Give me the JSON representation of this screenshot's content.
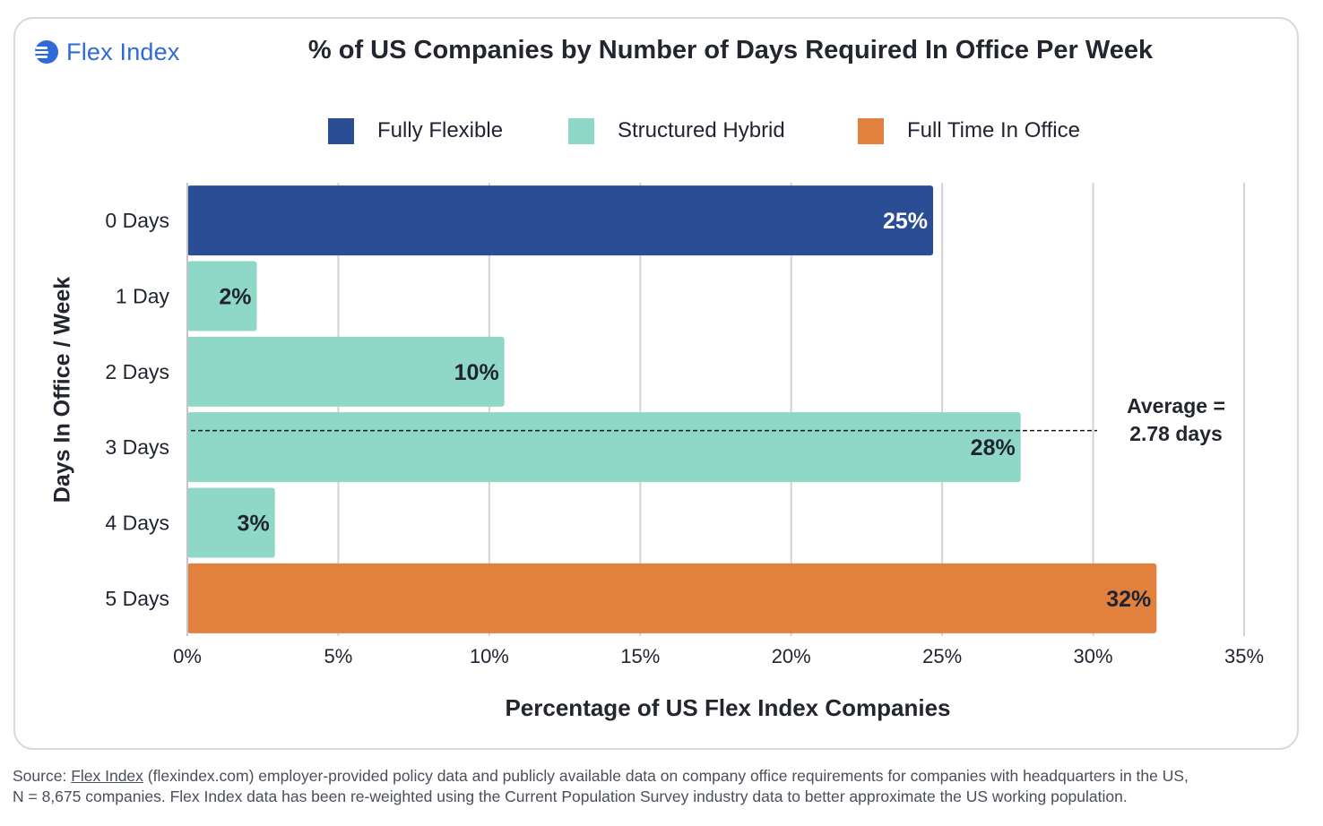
{
  "logo": {
    "text": "Flex Index"
  },
  "colors": {
    "fully_flexible": "#2b4d96",
    "structured_hybrid": "#8fd7c7",
    "full_time": "#e2803e",
    "grid": "#d3d3d3",
    "label": "#1f2430"
  },
  "legend": [
    {
      "label": "Fully Flexible",
      "color_key": "fully_flexible"
    },
    {
      "label": "Structured Hybrid",
      "color_key": "structured_hybrid"
    },
    {
      "label": "Full Time In Office",
      "color_key": "full_time"
    }
  ],
  "average_annotation": {
    "line1": "Average =",
    "line2": "2.78 days",
    "value_days": 2.78
  },
  "source": {
    "prefix": "Source: ",
    "link_text": "Flex Index",
    "rest_line1": " (flexindex.com) employer-provided policy data and publicly available data on company office requirements for companies with headquarters in the US,",
    "line2": "N = 8,675 companies. Flex Index data has been re-weighted using the Current Population Survey industry data to better approximate the US working population."
  },
  "chart_data": {
    "type": "bar",
    "orientation": "horizontal",
    "title": "% of US Companies by Number of Days Required In Office Per Week",
    "xlabel": "Percentage of US Flex Index Companies",
    "ylabel": "Days In Office / Week",
    "categories": [
      "0 Days",
      "1 Day",
      "2 Days",
      "3 Days",
      "4 Days",
      "5 Days"
    ],
    "values": [
      24.7,
      2.3,
      10.5,
      27.6,
      2.9,
      32.1
    ],
    "data_labels": [
      "25%",
      "2%",
      "10%",
      "28%",
      "3%",
      "32%"
    ],
    "bar_color_keys": [
      "fully_flexible",
      "structured_hybrid",
      "structured_hybrid",
      "structured_hybrid",
      "structured_hybrid",
      "full_time"
    ],
    "xlim": [
      0,
      35
    ],
    "xticks": [
      0,
      5,
      10,
      15,
      20,
      25,
      30,
      35
    ],
    "xtick_labels": [
      "0%",
      "5%",
      "10%",
      "15%",
      "20%",
      "25%",
      "30%",
      "35%"
    ],
    "grid": true,
    "legend_position": "top-center"
  }
}
